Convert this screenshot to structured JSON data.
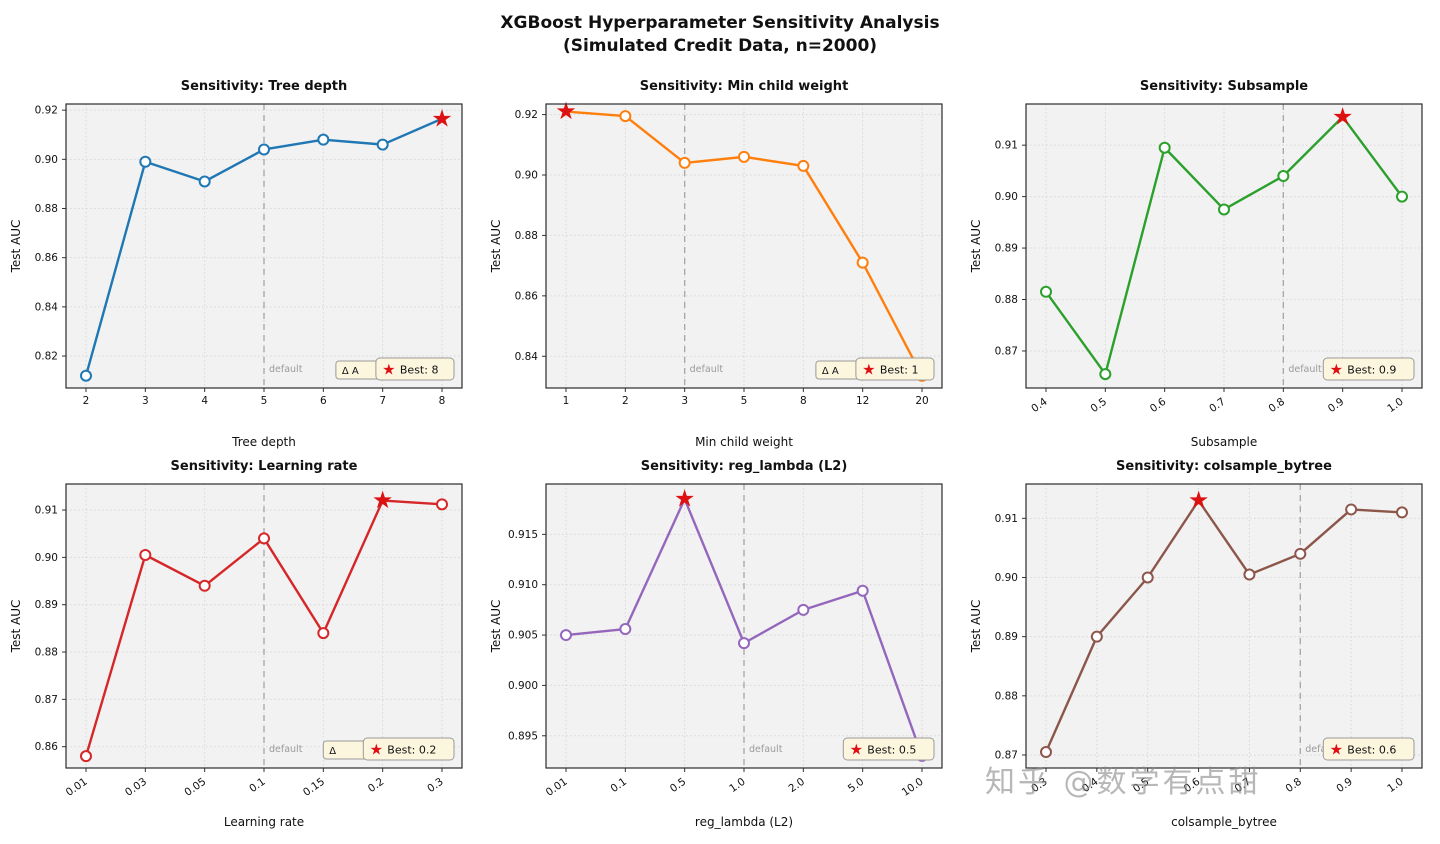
{
  "header": {
    "title_line1": "XGBoost Hyperparameter Sensitivity Analysis",
    "title_line2": "(Simulated Credit Data, n=2000)"
  },
  "watermark": {
    "text": "知乎 @数学有点甜"
  },
  "style": {
    "best_star_color": "#dd1111",
    "default_line_color": "#a6a6a6",
    "legend_bg": "#fdf6df",
    "legend_border": "#9a9a9a",
    "plot_bg": "#f2f2f2"
  },
  "chart_data": [
    {
      "type": "line",
      "title": "Sensitivity: Tree depth",
      "xlabel": "Tree depth",
      "ylabel": "Test AUC",
      "x_ticks": [
        "2",
        "3",
        "4",
        "5",
        "6",
        "7",
        "8"
      ],
      "values": [
        0.812,
        0.899,
        0.891,
        0.904,
        0.908,
        0.906,
        0.9165
      ],
      "y_ticks": [
        "0.82",
        "0.84",
        "0.86",
        "0.88",
        "0.90",
        "0.92"
      ],
      "ylim": [
        0.807,
        0.9225
      ],
      "color": "#1f77b4",
      "best_index": 6,
      "default_index": 3,
      "default_label": "default",
      "legend_label": "Best: 8",
      "delta_label": "Δ A",
      "x_tick_rotation": 0,
      "grid": true,
      "legend_position": "lower right"
    },
    {
      "type": "line",
      "title": "Sensitivity: Min child weight",
      "xlabel": "Min child weight",
      "ylabel": "Test AUC",
      "x_ticks": [
        "1",
        "2",
        "3",
        "5",
        "8",
        "12",
        "20"
      ],
      "values": [
        0.921,
        0.9195,
        0.904,
        0.906,
        0.903,
        0.871,
        0.8335
      ],
      "y_ticks": [
        "0.84",
        "0.86",
        "0.88",
        "0.90",
        "0.92"
      ],
      "ylim": [
        0.8295,
        0.9235
      ],
      "color": "#ff7f0e",
      "best_index": 0,
      "default_index": 2,
      "default_label": "default",
      "legend_label": "Best: 1",
      "delta_label": "Δ A",
      "x_tick_rotation": 0,
      "grid": true,
      "legend_position": "lower right"
    },
    {
      "type": "line",
      "title": "Sensitivity: Subsample",
      "xlabel": "Subsample",
      "ylabel": "Test AUC",
      "x_ticks": [
        "0.4",
        "0.5",
        "0.6",
        "0.7",
        "0.8",
        "0.9",
        "1.0"
      ],
      "values": [
        0.8815,
        0.8655,
        0.9095,
        0.8975,
        0.904,
        0.9155,
        0.9
      ],
      "y_ticks": [
        "0.87",
        "0.88",
        "0.89",
        "0.90",
        "0.91"
      ],
      "ylim": [
        0.8628,
        0.918
      ],
      "color": "#2ca02c",
      "best_index": 5,
      "default_index": 4,
      "default_label": "default",
      "legend_label": "Best: 0.9",
      "delta_label": "",
      "x_tick_rotation": 35,
      "grid": true,
      "legend_position": "lower right"
    },
    {
      "type": "line",
      "title": "Sensitivity: Learning rate",
      "xlabel": "Learning rate",
      "ylabel": "Test AUC",
      "x_ticks": [
        "0.01",
        "0.03",
        "0.05",
        "0.1",
        "0.15",
        "0.2",
        "0.3"
      ],
      "values": [
        0.858,
        0.9005,
        0.894,
        0.904,
        0.884,
        0.912,
        0.9112
      ],
      "y_ticks": [
        "0.86",
        "0.87",
        "0.88",
        "0.89",
        "0.90",
        "0.91"
      ],
      "ylim": [
        0.8555,
        0.9155
      ],
      "color": "#d62728",
      "best_index": 5,
      "default_index": 3,
      "default_label": "default",
      "legend_label": "Best: 0.2",
      "delta_label": "Δ",
      "x_tick_rotation": 35,
      "grid": true,
      "legend_position": "lower right"
    },
    {
      "type": "line",
      "title": "Sensitivity: reg_lambda (L2)",
      "xlabel": "reg_lambda (L2)",
      "ylabel": "Test AUC",
      "x_ticks": [
        "0.01",
        "0.1",
        "0.5",
        "1.0",
        "2.0",
        "5.0",
        "10.0"
      ],
      "values": [
        0.905,
        0.9056,
        0.9185,
        0.9042,
        0.9075,
        0.9094,
        0.893
      ],
      "y_ticks": [
        "0.895",
        "0.900",
        "0.905",
        "0.910",
        "0.915"
      ],
      "ylim": [
        0.8918,
        0.92
      ],
      "color": "#9467bd",
      "best_index": 2,
      "default_index": 3,
      "default_label": "default",
      "legend_label": "Best: 0.5",
      "delta_label": "",
      "x_tick_rotation": 35,
      "grid": true,
      "legend_position": "lower right"
    },
    {
      "type": "line",
      "title": "Sensitivity: colsample_bytree",
      "xlabel": "colsample_bytree",
      "ylabel": "Test AUC",
      "x_ticks": [
        "0.3",
        "0.4",
        "0.5",
        "0.6",
        "0.7",
        "0.8",
        "0.9",
        "1.0"
      ],
      "values": [
        0.8705,
        0.89,
        0.9,
        0.913,
        0.9005,
        0.904,
        0.9115,
        0.911
      ],
      "y_ticks": [
        "0.87",
        "0.88",
        "0.89",
        "0.90",
        "0.91"
      ],
      "ylim": [
        0.8678,
        0.9158
      ],
      "color": "#8c564b",
      "best_index": 3,
      "default_index": 5,
      "default_label": "default",
      "legend_label": "Best: 0.6",
      "delta_label": "",
      "x_tick_rotation": 35,
      "grid": true,
      "legend_position": "lower right"
    }
  ]
}
